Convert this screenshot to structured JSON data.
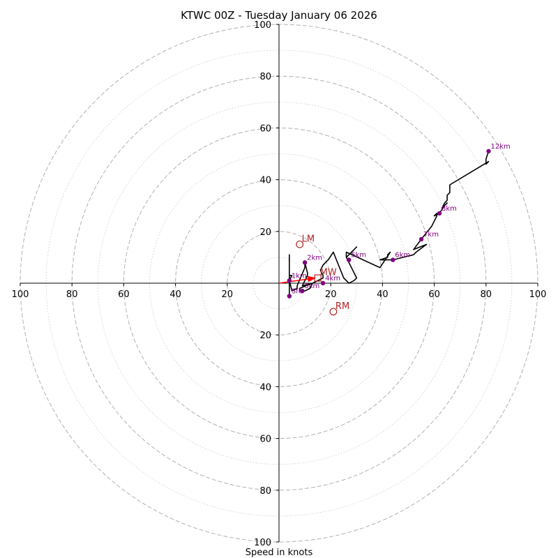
{
  "title": "KTWC 00Z - Tuesday January 06 2026",
  "chart_data": {
    "type": "hodograph",
    "title": "KTWC 00Z - Tuesday January 06 2026",
    "xlabel": "Speed in knots",
    "ylabel": "",
    "range": 100,
    "rings": [
      20,
      40,
      60,
      80,
      100
    ],
    "minor_rings": [
      10,
      30,
      50,
      70,
      90
    ],
    "grid": true,
    "x_tick_labels": [
      "100",
      "80",
      "60",
      "40",
      "20",
      "20",
      "40",
      "60",
      "80",
      "100"
    ],
    "y_tick_labels": [
      "100",
      "80",
      "60",
      "40",
      "20",
      "20",
      "40",
      "60",
      "80",
      "100"
    ],
    "x_tick_values": [
      -100,
      -80,
      -60,
      -40,
      -20,
      20,
      40,
      60,
      80,
      100
    ],
    "y_tick_values": [
      100,
      80,
      60,
      40,
      20,
      -20,
      -40,
      -60,
      -80,
      -100
    ],
    "hodograph": [
      [
        4,
        -5
      ],
      [
        4,
        1
      ],
      [
        5,
        3
      ],
      [
        4,
        3
      ],
      [
        4,
        10
      ],
      [
        4,
        11
      ],
      [
        4,
        1
      ],
      [
        5,
        -3
      ],
      [
        7,
        -2
      ],
      [
        7,
        -1
      ],
      [
        10,
        6
      ],
      [
        10,
        8
      ],
      [
        11,
        4
      ],
      [
        11,
        3
      ],
      [
        9,
        -1
      ],
      [
        13,
        0
      ],
      [
        12,
        -2
      ],
      [
        10,
        -3
      ],
      [
        8,
        -3
      ],
      [
        8,
        -2
      ],
      [
        13,
        0
      ],
      [
        17,
        2
      ],
      [
        17,
        3
      ],
      [
        16,
        5
      ],
      [
        17,
        7
      ],
      [
        19,
        9
      ],
      [
        21,
        12
      ],
      [
        25,
        2
      ],
      [
        27,
        0
      ],
      [
        29,
        1
      ],
      [
        30,
        2
      ],
      [
        26,
        10
      ],
      [
        30,
        14
      ],
      [
        26,
        10
      ],
      [
        26,
        12
      ],
      [
        39,
        6
      ],
      [
        43,
        12
      ],
      [
        42,
        11
      ],
      [
        42,
        10
      ],
      [
        39,
        9
      ],
      [
        44,
        9
      ],
      [
        48,
        10
      ],
      [
        52,
        11
      ],
      [
        53,
        12
      ],
      [
        57,
        15
      ],
      [
        52,
        13
      ],
      [
        55,
        17
      ],
      [
        59,
        22
      ],
      [
        60,
        24
      ],
      [
        61,
        26
      ],
      [
        61,
        27
      ],
      [
        60,
        26
      ],
      [
        62,
        27
      ],
      [
        64,
        30
      ],
      [
        65,
        31
      ],
      [
        63,
        29
      ],
      [
        64,
        31
      ],
      [
        65,
        32
      ],
      [
        65,
        34
      ],
      [
        66,
        35
      ],
      [
        66,
        38
      ],
      [
        81,
        47
      ],
      [
        80,
        46
      ],
      [
        80,
        47
      ],
      [
        80,
        48
      ],
      [
        81,
        51
      ]
    ],
    "height_markers": [
      {
        "label": "Sfc",
        "u": 4,
        "v": -5
      },
      {
        "label": "1km",
        "u": 4,
        "v": 1
      },
      {
        "label": "2km",
        "u": 10,
        "v": 8
      },
      {
        "label": "3km",
        "u": 9,
        "v": -3
      },
      {
        "label": "4km",
        "u": 17,
        "v": 0
      },
      {
        "label": "5km",
        "u": 27,
        "v": 9
      },
      {
        "label": "6km",
        "u": 44,
        "v": 9
      },
      {
        "label": "7km",
        "u": 55,
        "v": 17
      },
      {
        "label": "8km",
        "u": 62,
        "v": 27
      },
      {
        "label": "12km",
        "u": 81,
        "v": 51
      }
    ],
    "storm_motion": [
      {
        "label": "LM",
        "u": 8,
        "v": 15,
        "marker": "circle"
      },
      {
        "label": "MW",
        "u": 15,
        "v": 2,
        "marker": "square"
      },
      {
        "label": "RM",
        "u": 21,
        "v": -11,
        "marker": "circle"
      }
    ],
    "shear_vector": {
      "from_u": 0,
      "from_v": 0,
      "to_u": 15,
      "to_v": 2
    }
  },
  "colors": {
    "hodograph": "#000000",
    "height_marker": "#800080",
    "storm_motion": "#b22222",
    "shear_vector": "#ff0000",
    "grid": "#b0b0b0",
    "axes": "#000000"
  }
}
